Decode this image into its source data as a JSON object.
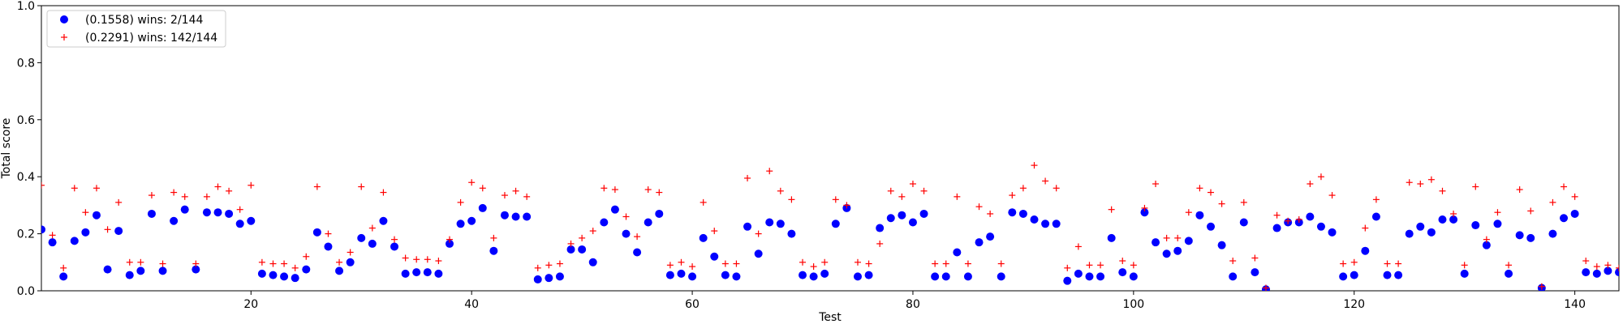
{
  "chart_data": {
    "type": "scatter",
    "title": "",
    "xlabel": "Test",
    "ylabel": "Total score",
    "xlim": [
      1,
      144
    ],
    "ylim": [
      0,
      1.0
    ],
    "x_ticks": [
      20,
      40,
      60,
      80,
      100,
      120,
      140
    ],
    "y_ticks": [
      0.0,
      0.2,
      0.4,
      0.6,
      0.8,
      1.0
    ],
    "x_tick_labels": [
      "20",
      "40",
      "60",
      "80",
      "100",
      "120",
      "140"
    ],
    "y_tick_labels": [
      "0.0",
      "0.2",
      "0.4",
      "0.6",
      "0.8",
      "1.0"
    ],
    "grid": false,
    "legend_position": "upper-left",
    "series": [
      {
        "name": "(0.1558) wins: 2/144",
        "marker": "circle",
        "color": "#0000ff",
        "x": [
          1,
          2,
          3,
          4,
          5,
          6,
          7,
          8,
          9,
          10,
          11,
          12,
          13,
          14,
          15,
          16,
          17,
          18,
          19,
          20,
          21,
          22,
          23,
          24,
          25,
          26,
          27,
          28,
          29,
          30,
          31,
          32,
          33,
          34,
          35,
          36,
          37,
          38,
          39,
          40,
          41,
          42,
          43,
          44,
          45,
          46,
          47,
          48,
          49,
          50,
          51,
          52,
          53,
          54,
          55,
          56,
          57,
          58,
          59,
          60,
          61,
          62,
          63,
          64,
          65,
          66,
          67,
          68,
          69,
          70,
          71,
          72,
          73,
          74,
          75,
          76,
          77,
          78,
          79,
          80,
          81,
          82,
          83,
          84,
          85,
          86,
          87,
          88,
          89,
          90,
          91,
          92,
          93,
          94,
          95,
          96,
          97,
          98,
          99,
          100,
          101,
          102,
          103,
          104,
          105,
          106,
          107,
          108,
          109,
          110,
          111,
          112,
          113,
          114,
          115,
          116,
          117,
          118,
          119,
          120,
          121,
          122,
          123,
          124,
          125,
          126,
          127,
          128,
          129,
          130,
          131,
          132,
          133,
          134,
          135,
          136,
          137,
          138,
          139,
          140,
          141,
          142,
          143,
          144
        ],
        "y": [
          0.215,
          0.17,
          0.05,
          0.175,
          0.205,
          0.265,
          0.075,
          0.21,
          0.055,
          0.07,
          0.27,
          0.07,
          0.245,
          0.285,
          0.075,
          0.275,
          0.275,
          0.27,
          0.235,
          0.245,
          0.06,
          0.055,
          0.05,
          0.045,
          0.075,
          0.205,
          0.155,
          0.07,
          0.1,
          0.185,
          0.165,
          0.245,
          0.155,
          0.06,
          0.065,
          0.065,
          0.06,
          0.165,
          0.235,
          0.245,
          0.29,
          0.14,
          0.265,
          0.26,
          0.26,
          0.04,
          0.045,
          0.05,
          0.145,
          0.145,
          0.1,
          0.24,
          0.285,
          0.2,
          0.135,
          0.24,
          0.27,
          0.055,
          0.06,
          0.05,
          0.185,
          0.12,
          0.055,
          0.05,
          0.225,
          0.13,
          0.24,
          0.235,
          0.2,
          0.055,
          0.05,
          0.06,
          0.235,
          0.29,
          0.05,
          0.055,
          0.22,
          0.255,
          0.265,
          0.24,
          0.27,
          0.05,
          0.05,
          0.135,
          0.05,
          0.17,
          0.19,
          0.05,
          0.275,
          0.27,
          0.25,
          0.235,
          0.235,
          0.035,
          0.06,
          0.05,
          0.05,
          0.185,
          0.065,
          0.05,
          0.275,
          0.17,
          0.13,
          0.14,
          0.175,
          0.265,
          0.225,
          0.16,
          0.05,
          0.24,
          0.065,
          0.005,
          0.22,
          0.24,
          0.24,
          0.26,
          0.225,
          0.205,
          0.05,
          0.055,
          0.14,
          0.26,
          0.055,
          0.055,
          0.2,
          0.225,
          0.205,
          0.25,
          0.25,
          0.06,
          0.23,
          0.16,
          0.235,
          0.06,
          0.195,
          0.185,
          0.01,
          0.2,
          0.255,
          0.27,
          0.065,
          0.06,
          0.07,
          0.065
        ]
      },
      {
        "name": "(0.2291) wins: 142/144",
        "marker": "plus",
        "color": "#ff0000",
        "x": [
          1,
          2,
          3,
          4,
          5,
          6,
          7,
          8,
          9,
          10,
          11,
          12,
          13,
          14,
          15,
          16,
          17,
          18,
          19,
          20,
          21,
          22,
          23,
          24,
          25,
          26,
          27,
          28,
          29,
          30,
          31,
          32,
          33,
          34,
          35,
          36,
          37,
          38,
          39,
          40,
          41,
          42,
          43,
          44,
          45,
          46,
          47,
          48,
          49,
          50,
          51,
          52,
          53,
          54,
          55,
          56,
          57,
          58,
          59,
          60,
          61,
          62,
          63,
          64,
          65,
          66,
          67,
          68,
          69,
          70,
          71,
          72,
          73,
          74,
          75,
          76,
          77,
          78,
          79,
          80,
          81,
          82,
          83,
          84,
          85,
          86,
          87,
          88,
          89,
          90,
          91,
          92,
          93,
          94,
          95,
          96,
          97,
          98,
          99,
          100,
          101,
          102,
          103,
          104,
          105,
          106,
          107,
          108,
          109,
          110,
          111,
          112,
          113,
          114,
          115,
          116,
          117,
          118,
          119,
          120,
          121,
          122,
          123,
          124,
          125,
          126,
          127,
          128,
          129,
          130,
          131,
          132,
          133,
          134,
          135,
          136,
          137,
          138,
          139,
          140,
          141,
          142,
          143,
          144
        ],
        "y": [
          0.37,
          0.195,
          0.08,
          0.36,
          0.275,
          0.36,
          0.215,
          0.31,
          0.1,
          0.1,
          0.335,
          0.095,
          0.345,
          0.33,
          0.095,
          0.33,
          0.365,
          0.35,
          0.285,
          0.37,
          0.1,
          0.095,
          0.095,
          0.08,
          0.12,
          0.365,
          0.2,
          0.1,
          0.135,
          0.365,
          0.22,
          0.345,
          0.18,
          0.115,
          0.11,
          0.11,
          0.105,
          0.18,
          0.31,
          0.38,
          0.36,
          0.185,
          0.335,
          0.35,
          0.33,
          0.08,
          0.09,
          0.095,
          0.165,
          0.185,
          0.21,
          0.36,
          0.355,
          0.26,
          0.19,
          0.355,
          0.345,
          0.09,
          0.1,
          0.085,
          0.31,
          0.21,
          0.095,
          0.095,
          0.395,
          0.2,
          0.42,
          0.35,
          0.32,
          0.1,
          0.085,
          0.1,
          0.32,
          0.3,
          0.1,
          0.095,
          0.165,
          0.35,
          0.33,
          0.375,
          0.35,
          0.095,
          0.095,
          0.33,
          0.095,
          0.295,
          0.27,
          0.095,
          0.335,
          0.36,
          0.44,
          0.385,
          0.36,
          0.08,
          0.155,
          0.09,
          0.09,
          0.285,
          0.105,
          0.09,
          0.29,
          0.375,
          0.185,
          0.185,
          0.275,
          0.36,
          0.345,
          0.305,
          0.105,
          0.31,
          0.115,
          0.01,
          0.265,
          0.245,
          0.25,
          0.375,
          0.4,
          0.335,
          0.095,
          0.1,
          0.22,
          0.32,
          0.095,
          0.095,
          0.38,
          0.375,
          0.39,
          0.35,
          0.27,
          0.09,
          0.365,
          0.18,
          0.275,
          0.09,
          0.355,
          0.28,
          0.015,
          0.31,
          0.365,
          0.33,
          0.105,
          0.085,
          0.09,
          0.08
        ]
      }
    ]
  }
}
